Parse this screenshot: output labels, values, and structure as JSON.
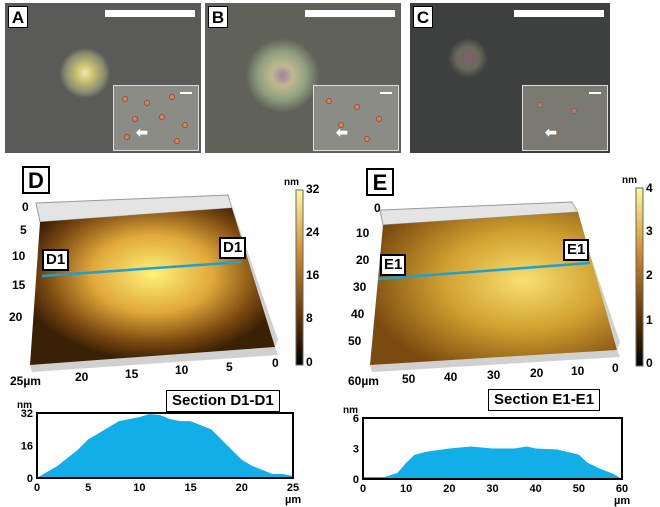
{
  "micrographs": [
    {
      "label": "A"
    },
    {
      "label": "B"
    },
    {
      "label": "C"
    }
  ],
  "panel_d": {
    "label": "D",
    "line_label": "D1",
    "axis_left": [
      "0",
      "5",
      "10",
      "15",
      "20"
    ],
    "axis_bottom": [
      "25µm",
      "20",
      "15",
      "10",
      "5",
      "0"
    ],
    "colorbar_unit": "nm",
    "colorbar_ticks": [
      "32",
      "24",
      "16",
      "8",
      "0"
    ]
  },
  "panel_e": {
    "label": "E",
    "line_label": "E1",
    "axis_left": [
      "0",
      "10",
      "20",
      "30",
      "40",
      "50"
    ],
    "axis_bottom": [
      "60µm",
      "50",
      "40",
      "30",
      "20",
      "10",
      "0"
    ],
    "colorbar_unit": "nm",
    "colorbar_ticks": [
      "4",
      "3",
      "2",
      "1",
      "0"
    ]
  },
  "chart_data": [
    {
      "type": "area",
      "title": "Section D1-D1",
      "ylabel": "nm",
      "xlabel": "µm",
      "xlim": [
        0,
        25
      ],
      "ylim": [
        0,
        32
      ],
      "xticks": [
        "0",
        "5",
        "10",
        "15",
        "20",
        "25"
      ],
      "yticks": [
        "32",
        "16",
        "0"
      ],
      "color": "#12aee8",
      "x": [
        0,
        1,
        2,
        3,
        4,
        5,
        6,
        7,
        8,
        9,
        10,
        11,
        12,
        13,
        14,
        15,
        16,
        17,
        18,
        19,
        20,
        21,
        22,
        23,
        24,
        25
      ],
      "y": [
        0,
        3,
        6,
        10,
        14,
        19,
        22,
        25,
        28,
        29,
        30,
        31.5,
        31,
        29,
        28,
        28,
        26,
        24,
        19,
        14,
        9,
        6,
        4,
        2,
        2,
        1
      ]
    },
    {
      "type": "area",
      "title": "Section E1-E1",
      "ylabel": "nm",
      "xlabel": "µm",
      "xlim": [
        0,
        60
      ],
      "ylim": [
        0,
        6
      ],
      "xticks": [
        "0",
        "10",
        "20",
        "30",
        "40",
        "50",
        "60"
      ],
      "yticks": [
        "6",
        "3",
        "0"
      ],
      "color": "#12aee8",
      "x": [
        0,
        5,
        8,
        10,
        12,
        15,
        20,
        25,
        30,
        35,
        38,
        40,
        45,
        50,
        52,
        55,
        58,
        60
      ],
      "y": [
        0.2,
        0.2,
        0.6,
        1.6,
        2.4,
        2.7,
        3.0,
        3.2,
        3.0,
        3.0,
        3.2,
        3.0,
        2.9,
        2.4,
        1.6,
        1.0,
        0.5,
        0
      ]
    }
  ]
}
